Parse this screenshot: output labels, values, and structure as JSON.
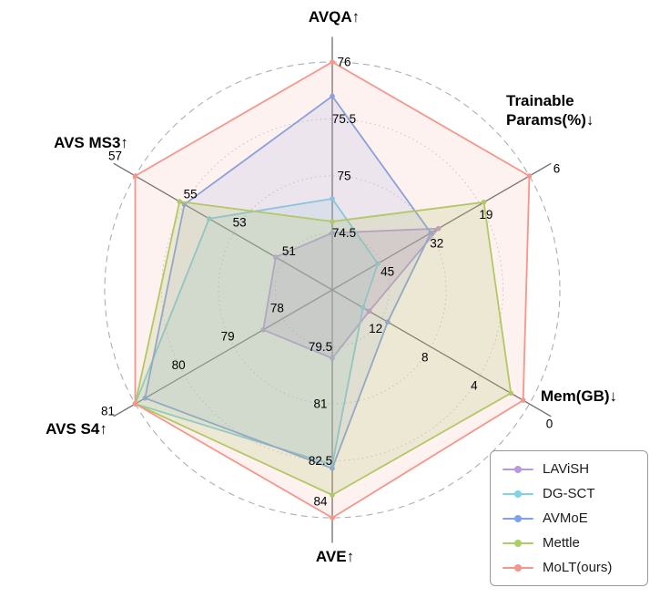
{
  "chart_data": {
    "type": "radar",
    "title": "",
    "grid": "dotted-circles-with-dashed-outer",
    "legend_position": "bottom-right",
    "rings": [
      0.25,
      0.5,
      0.75,
      1.0
    ],
    "axes": [
      {
        "title": "AVQA↑",
        "better": "higher",
        "center_value": 74,
        "outer_value": 76,
        "ticks": [
          74.5,
          75,
          75.5,
          76
        ]
      },
      {
        "title": "Trainable Params(%)↓",
        "better": "lower",
        "center_value": 58,
        "outer_value": 6,
        "ticks": [
          45,
          32,
          19,
          6
        ]
      },
      {
        "title": "Mem(GB)↓",
        "better": "lower",
        "center_value": 16,
        "outer_value": 0,
        "ticks": [
          12,
          8,
          4,
          0
        ]
      },
      {
        "title": "AVE↑",
        "better": "higher",
        "center_value": 78,
        "outer_value": 84,
        "ticks": [
          79.5,
          81,
          82.5,
          84
        ]
      },
      {
        "title": "AVS S4↑",
        "better": "higher",
        "center_value": 77,
        "outer_value": 81,
        "ticks": [
          78,
          79,
          80,
          81
        ]
      },
      {
        "title": "AVS MS3↑",
        "better": "higher",
        "center_value": 49,
        "outer_value": 57,
        "ticks": [
          51,
          53,
          55,
          57
        ]
      }
    ],
    "axis_order_note": "series values follow axes order: AVQA, Trainable Params(%), Mem(GB), AVE, AVS S4, AVS MS3",
    "series": [
      {
        "name": "LAViSH",
        "color": "#b79ade",
        "fill_opacity": 0.3,
        "values": [
          74.5,
          30,
          13,
          79.8,
          78.4,
          51.3
        ]
      },
      {
        "name": "DG-SCT",
        "color": "#7ed3e6",
        "fill_opacity": 0.18,
        "values": [
          74.8,
          46,
          13.5,
          82.6,
          81,
          54
        ]
      },
      {
        "name": "AVMoE",
        "color": "#7da2e8",
        "fill_opacity": 0.15,
        "values": [
          75.7,
          32,
          11.5,
          82.7,
          80.8,
          55
        ]
      },
      {
        "name": "Mettle",
        "color": "#aacf62",
        "fill_opacity": 0.22,
        "values": [
          74.6,
          18,
          1.5,
          83.4,
          81,
          55.2
        ]
      },
      {
        "name": "MoLT(ours)",
        "color": "#f5968a",
        "fill_opacity": 0.12,
        "values": [
          76,
          6,
          0.5,
          84,
          81,
          57
        ]
      }
    ]
  },
  "legend": {
    "items": [
      "LAViSH",
      "DG-SCT",
      "AVMoE",
      "Mettle",
      "MoLT(ours)"
    ]
  }
}
